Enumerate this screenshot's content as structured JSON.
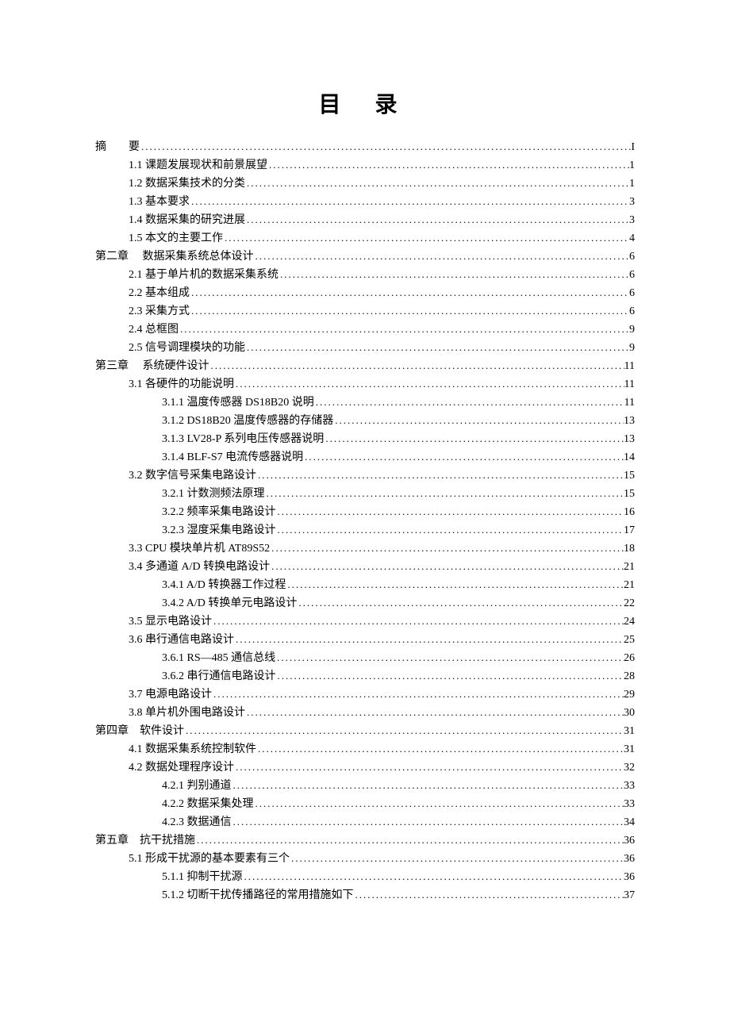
{
  "title": "目 录",
  "text_color": "#000000",
  "background_color": "#ffffff",
  "font_family": "SimSun",
  "title_fontsize": 28,
  "body_fontsize": 14,
  "entries": [
    {
      "indent": 0,
      "label": "摘　　要",
      "page": "I"
    },
    {
      "indent": 1,
      "label": "1.1  课题发展现状和前景展望",
      "page": "1"
    },
    {
      "indent": 1,
      "label": "1.2  数据采集技术的分类",
      "page": "1"
    },
    {
      "indent": 1,
      "label": "1.3  基本要求",
      "page": "3"
    },
    {
      "indent": 1,
      "label": "1.4  数据采集的研究进展",
      "page": "3"
    },
    {
      "indent": 1,
      "label": "1.5  本文的主要工作",
      "page": "4"
    },
    {
      "indent": 0,
      "label": "第二章　 数据采集系统总体设计",
      "page": "6"
    },
    {
      "indent": 1,
      "label": "2.1  基于单片机的数据采集系统",
      "page": "6"
    },
    {
      "indent": 1,
      "label": "2.2  基本组成",
      "page": "6"
    },
    {
      "indent": 1,
      "label": "2.3  采集方式",
      "page": "6"
    },
    {
      "indent": 1,
      "label": "2.4  总框图",
      "page": "9"
    },
    {
      "indent": 1,
      "label": "2.5  信号调理模块的功能",
      "page": "9"
    },
    {
      "indent": 0,
      "label": "第三章　 系统硬件设计",
      "page": "11"
    },
    {
      "indent": 1,
      "label": "3.1 各硬件的功能说明",
      "page": "11"
    },
    {
      "indent": 2,
      "label": "3.1.1 温度传感器 DS18B20 说明",
      "page": "11"
    },
    {
      "indent": 2,
      "label": "3.1.2 DS18B20 温度传感器的存储器",
      "page": "13"
    },
    {
      "indent": 2,
      "label": "3.1.3 LV28-P 系列电压传感器说明",
      "page": "13"
    },
    {
      "indent": 2,
      "label": "3.1.4 BLF-S7 电流传感器说明",
      "page": "14"
    },
    {
      "indent": 1,
      "label": "3.2 数字信号采集电路设计",
      "page": "15"
    },
    {
      "indent": 2,
      "label": "3.2.1 计数测频法原理",
      "page": "15"
    },
    {
      "indent": 2,
      "label": "3.2.2 频率采集电路设计",
      "page": "16"
    },
    {
      "indent": 2,
      "label": "3.2.3 湿度采集电路设计",
      "page": "17"
    },
    {
      "indent": 1,
      "label": "3.3 CPU 模块单片机 AT89S52",
      "page": "18"
    },
    {
      "indent": 1,
      "label": "3.4 多通道 A/D 转换电路设计",
      "page": "21"
    },
    {
      "indent": 2,
      "label": "3.4.1 A/D 转换器工作过程",
      "page": "21"
    },
    {
      "indent": 2,
      "label": "3.4.2 A/D 转换单元电路设计",
      "page": "22"
    },
    {
      "indent": 1,
      "label": "3.5 显示电路设计",
      "page": "24"
    },
    {
      "indent": 1,
      "label": "3.6  串行通信电路设计",
      "page": "25"
    },
    {
      "indent": 2,
      "label": "3.6.1 RS—485 通信总线",
      "page": "26"
    },
    {
      "indent": 2,
      "label": "3.6.2 串行通信电路设计",
      "page": "28"
    },
    {
      "indent": 1,
      "label": "3.7 电源电路设计",
      "page": "29"
    },
    {
      "indent": 1,
      "label": "3.8 单片机外围电路设计",
      "page": "30"
    },
    {
      "indent": 0,
      "label": "第四章　软件设计",
      "page": "31"
    },
    {
      "indent": 1,
      "label": "4.1  数据采集系统控制软件",
      "page": "31"
    },
    {
      "indent": 1,
      "label": "4.2  数据处理程序设计",
      "page": "32"
    },
    {
      "indent": 2,
      "label": "4.2.1  判别通道",
      "page": "33"
    },
    {
      "indent": 2,
      "label": "4.2.2  数据采集处理",
      "page": "33"
    },
    {
      "indent": 2,
      "label": "4.2.3  数据通信",
      "page": "34"
    },
    {
      "indent": 0,
      "label": "第五章　抗干扰措施",
      "page": "36"
    },
    {
      "indent": 1,
      "label": "5.1  形成干扰源的基本要素有三个",
      "page": "36"
    },
    {
      "indent": 2,
      "label": "5.1.1  抑制干扰源",
      "page": "36"
    },
    {
      "indent": 2,
      "label": "5.1.2  切断干扰传播路径的常用措施如下",
      "page": "37"
    }
  ]
}
